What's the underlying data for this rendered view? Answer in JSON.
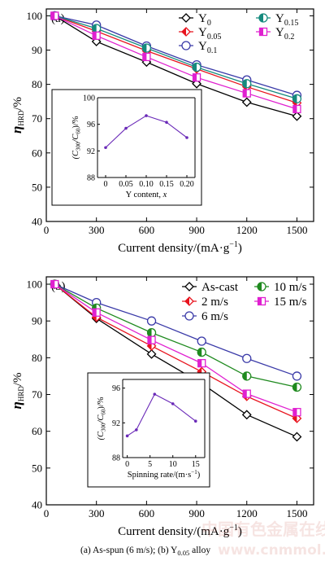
{
  "figure": {
    "caption": {
      "main": "(a) As-spun (6 m/s); (b) Y",
      "sub": "0.05",
      "tail": " alloy"
    },
    "watermark": {
      "cn": "中国有色金属在线",
      "url": "www.cnmmol.com"
    }
  },
  "chart_data": [
    {
      "type": "line",
      "panel_label": "(a)",
      "xlabel": "Current density/(mA·g",
      "xlabel_sup": "−1",
      "xlabel_tail": ")",
      "ylabel": "η",
      "ylabel_sub": "HRD",
      "ylabel_tail": "/%",
      "xlim": [
        0,
        1600
      ],
      "ylim": [
        40,
        102
      ],
      "xticks": [
        0,
        300,
        600,
        900,
        1200,
        1500
      ],
      "yticks": [
        40,
        50,
        60,
        70,
        80,
        90,
        100
      ],
      "x": [
        50,
        300,
        600,
        900,
        1200,
        1500
      ],
      "series": [
        {
          "name": "Y",
          "sub": "0",
          "color": "#000000",
          "marker": "diamond",
          "fill": "none",
          "values": [
            100,
            92.5,
            86.5,
            80.2,
            74.8,
            70.7
          ]
        },
        {
          "name": "Y",
          "sub": "0.05",
          "color": "#e8141e",
          "marker": "diamond",
          "fill": "half",
          "values": [
            100,
            95.5,
            89.8,
            84.5,
            79.3,
            74.6
          ]
        },
        {
          "name": "Y",
          "sub": "0.1",
          "color": "#3a3aa8",
          "marker": "circle",
          "fill": "none",
          "values": [
            100,
            97.3,
            91.2,
            85.7,
            81.3,
            76.8
          ]
        },
        {
          "name": "Y",
          "sub": "0.15",
          "color": "#158a7d",
          "marker": "circle",
          "fill": "half",
          "values": [
            100,
            96.3,
            90.6,
            85.0,
            80.2,
            75.8
          ]
        },
        {
          "name": "Y",
          "sub": "0.2",
          "color": "#e020d0",
          "marker": "square",
          "fill": "half",
          "values": [
            100,
            94.2,
            88.0,
            82.0,
            77.4,
            72.8
          ]
        }
      ],
      "legend": "top-right",
      "grid": false,
      "inset": {
        "type": "line",
        "xlabel": "Y content, ",
        "xlabel_var": "x",
        "ylabel": "(C",
        "ylabel_sub": "300",
        "ylabel_mid": "/C",
        "ylabel_sub2": "60",
        "ylabel_tail": ")/%",
        "xlim": [
          -0.02,
          0.22
        ],
        "ylim": [
          88,
          100
        ],
        "xticks": [
          "0",
          "0.05",
          "0.10",
          "0.15",
          "0.20"
        ],
        "xtick_values": [
          0,
          0.05,
          0.1,
          0.15,
          0.2
        ],
        "yticks": [
          88,
          92,
          96,
          100
        ],
        "color": "#6a2ab8",
        "x": [
          0,
          0.05,
          0.1,
          0.15,
          0.2
        ],
        "y": [
          92.5,
          95.4,
          97.3,
          96.3,
          94.0
        ]
      }
    },
    {
      "type": "line",
      "panel_label": "(b)",
      "xlabel": "Current density/(mA·g",
      "xlabel_sup": "−1",
      "xlabel_tail": ")",
      "ylabel": "η",
      "ylabel_sub": "HRD",
      "ylabel_tail": "/%",
      "xlim": [
        0,
        1600
      ],
      "ylim": [
        40,
        102
      ],
      "xticks": [
        0,
        300,
        600,
        900,
        1200,
        1500
      ],
      "yticks": [
        40,
        50,
        60,
        70,
        80,
        90,
        100
      ],
      "x": [
        50,
        300,
        630,
        930,
        1200,
        1500
      ],
      "series": [
        {
          "name": "As-cast",
          "color": "#000000",
          "marker": "diamond",
          "fill": "none",
          "values": [
            100,
            90.7,
            81.0,
            73.0,
            64.5,
            58.5
          ]
        },
        {
          "name": "2 m/s",
          "color": "#e8141e",
          "marker": "diamond",
          "fill": "half",
          "values": [
            100,
            91.0,
            83.2,
            76.2,
            69.5,
            63.5
          ]
        },
        {
          "name": "6 m/s",
          "color": "#3a3aa8",
          "marker": "circle",
          "fill": "none",
          "values": [
            100,
            95.0,
            90.0,
            84.5,
            79.8,
            75.0
          ]
        },
        {
          "name": "10 m/s",
          "color": "#1f8a1f",
          "marker": "circle",
          "fill": "half",
          "values": [
            100,
            93.5,
            86.8,
            81.5,
            75.0,
            72.0
          ]
        },
        {
          "name": "15 m/s",
          "color": "#e020d0",
          "marker": "square",
          "fill": "half",
          "values": [
            100,
            92.3,
            84.8,
            78.5,
            70.2,
            65.2
          ]
        }
      ],
      "legend": "top-right",
      "grid": false,
      "inset": {
        "type": "line",
        "xlabel": "Spinning rate/(m·s",
        "xlabel_sup": "−1",
        "xlabel_tail": ")",
        "ylabel": "(C",
        "ylabel_sub": "300",
        "ylabel_mid": "/C",
        "ylabel_sub2": "60",
        "ylabel_tail": ")/%",
        "xlim": [
          -1,
          17
        ],
        "ylim": [
          88,
          97
        ],
        "xticks": [
          "0",
          "5",
          "10",
          "15"
        ],
        "xtick_values": [
          0,
          5,
          10,
          15
        ],
        "yticks": [
          88,
          92,
          96
        ],
        "color": "#6a2ab8",
        "x": [
          0,
          2,
          6,
          10,
          15
        ],
        "y": [
          90.5,
          91.2,
          95.3,
          94.2,
          92.2
        ]
      }
    }
  ]
}
